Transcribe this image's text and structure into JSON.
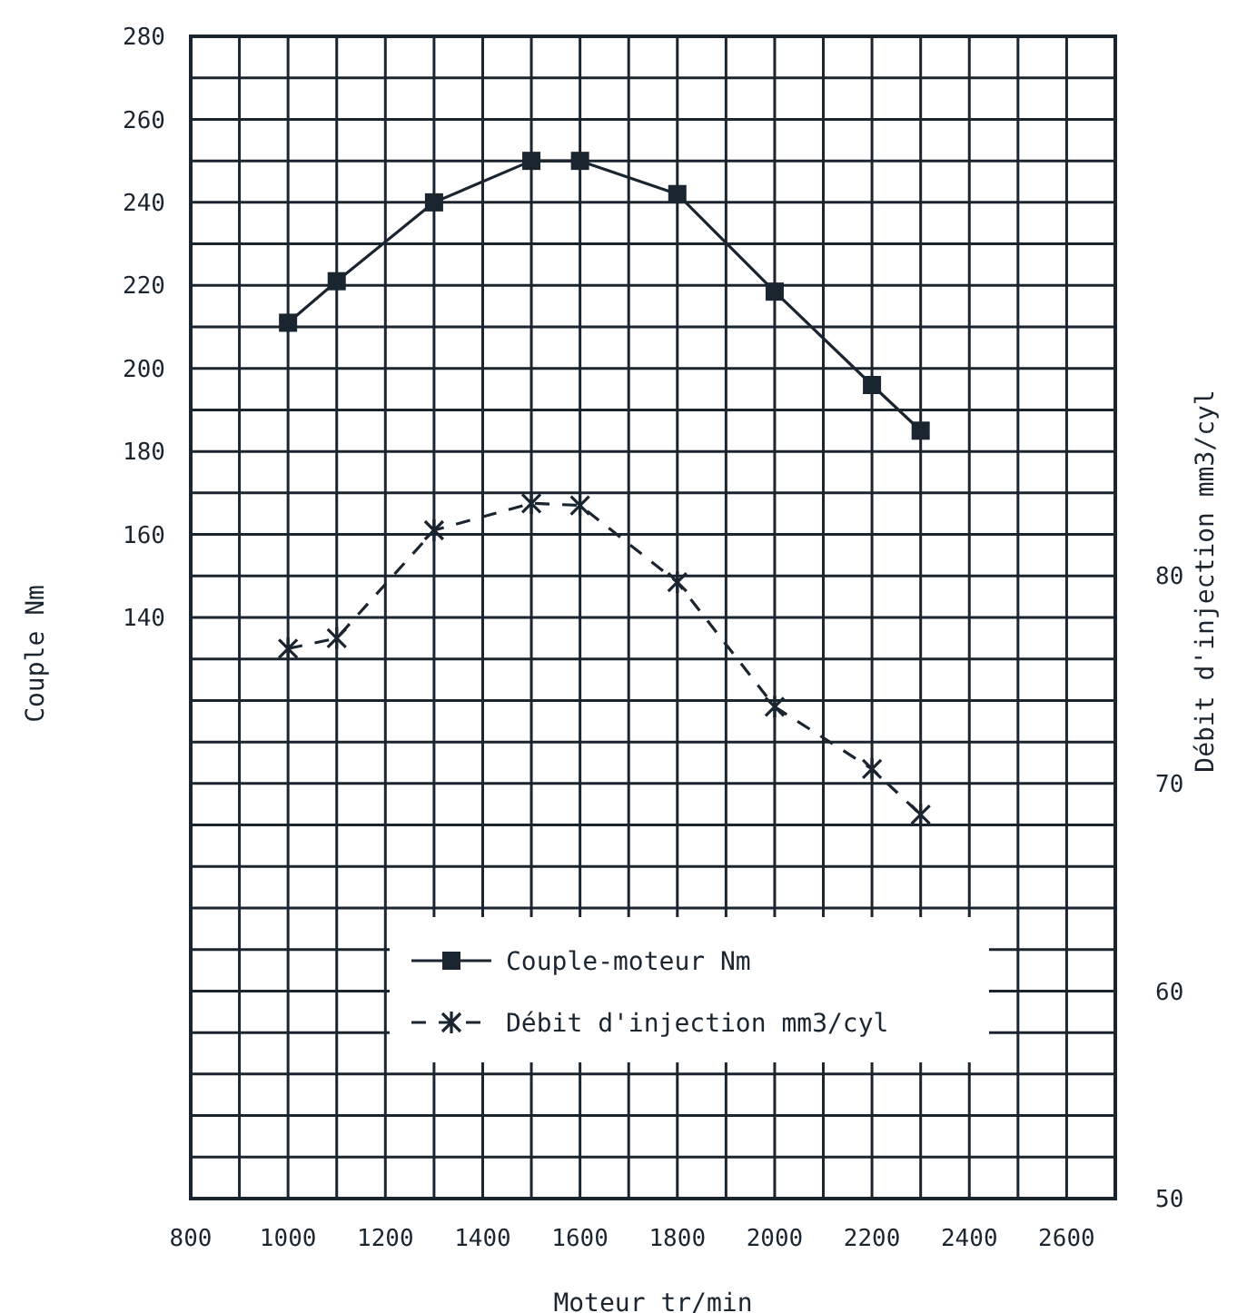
{
  "chart_data": {
    "type": "line",
    "xlabel": "Moteur tr/min",
    "ylabel": "Couple Nm",
    "y2label": "Débit d'injection mm3/cyl",
    "x": [
      1000,
      1100,
      1300,
      1500,
      1600,
      1800,
      2000,
      2200,
      2300
    ],
    "series": [
      {
        "name": "Couple-moteur Nm",
        "color": "#1a2530",
        "values": [
          211,
          221,
          240,
          250,
          250,
          242,
          218.5,
          196,
          185
        ],
        "marker": "square",
        "line_style": "solid"
      },
      {
        "name": "Débit d'injection mm3/cyl",
        "color": "#1a2530",
        "values": [
          76.5,
          77,
          82.2,
          83.5,
          83.4,
          79.7,
          73.7,
          70.7,
          68.5
        ],
        "axis": "y2",
        "marker": "cross",
        "line_style": "dashed"
      }
    ],
    "xlim": [
      800,
      2700
    ],
    "xticks": [
      800,
      {
        "value": 900,
        "label": null
      },
      1000,
      {
        "value": 1100,
        "label": null
      },
      1200,
      {
        "value": 1300,
        "label": null
      },
      1400,
      {
        "value": 1500,
        "label": null
      },
      1600,
      {
        "value": 1700,
        "label": null
      },
      1800,
      {
        "value": 1900,
        "label": null
      },
      2000,
      {
        "value": 2100,
        "label": null
      },
      2200,
      {
        "value": 2300,
        "label": null
      },
      2400,
      {
        "value": 2500,
        "label": null
      },
      2600,
      {
        "value": 2700,
        "label": null
      }
    ],
    "ylim": [
      0,
      280
    ],
    "yticks": [
      {
        "value": 0,
        "label": null
      },
      {
        "value": 10,
        "label": null
      },
      {
        "value": 20,
        "label": null
      },
      {
        "value": 30,
        "label": null
      },
      {
        "value": 40,
        "label": null
      },
      {
        "value": 50,
        "label": null
      },
      {
        "value": 60,
        "label": null
      },
      {
        "value": 70,
        "label": null
      },
      {
        "value": 80,
        "label": null
      },
      {
        "value": 90,
        "label": null
      },
      {
        "value": 100,
        "label": null
      },
      {
        "value": 110,
        "label": null
      },
      {
        "value": 120,
        "label": null
      },
      {
        "value": 130,
        "label": null
      },
      140,
      {
        "value": 150,
        "label": null
      },
      160,
      {
        "value": 170,
        "label": null
      },
      180,
      {
        "value": 190,
        "label": null
      },
      200,
      {
        "value": 210,
        "label": null
      },
      220,
      {
        "value": 230,
        "label": null
      },
      240,
      {
        "value": 250,
        "label": null
      },
      260,
      {
        "value": 270,
        "label": null
      },
      280
    ],
    "y2lim": [
      50,
      106
    ],
    "y2ticks": [
      50,
      60,
      70,
      80
    ],
    "grid": true,
    "legend": "bottom"
  }
}
